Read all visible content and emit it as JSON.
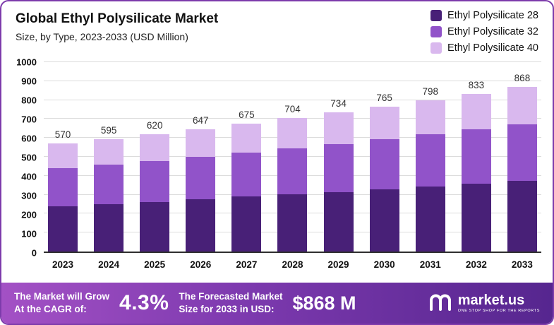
{
  "header": {
    "title": "Global Ethyl Polysilicate Market",
    "subtitle": "Size, by Type, 2023-2033 (USD Million)"
  },
  "chart_data": {
    "type": "bar",
    "stacked": true,
    "title": "Global Ethyl Polysilicate Market",
    "subtitle": "Size, by Type, 2023-2033 (USD Million)",
    "categories": [
      "2023",
      "2024",
      "2025",
      "2026",
      "2027",
      "2028",
      "2029",
      "2030",
      "2031",
      "2032",
      "2033"
    ],
    "series": [
      {
        "name": "Ethyl Polysilicate 28",
        "color": "#482077",
        "values": [
          240,
          250,
          262,
          276,
          290,
          302,
          314,
          328,
          342,
          357,
          372
        ]
      },
      {
        "name": "Ethyl Polysilicate 32",
        "color": "#9153c9",
        "values": [
          200,
          208,
          216,
          224,
          232,
          242,
          253,
          264,
          276,
          288,
          301
        ]
      },
      {
        "name": "Ethyl Polysilicate 40",
        "color": "#d9b8ee",
        "values": [
          130,
          137,
          142,
          147,
          153,
          160,
          167,
          173,
          180,
          188,
          195
        ]
      }
    ],
    "totals": [
      570,
      595,
      620,
      647,
      675,
      704,
      734,
      765,
      798,
      833,
      868
    ],
    "ylim": [
      0,
      1000
    ],
    "ytick_interval": 100,
    "grid": true,
    "legend_position": "top-right",
    "xlabel": "",
    "ylabel": ""
  },
  "banner": {
    "cagr_label_line1": "The Market will Grow",
    "cagr_label_line2": "At the CAGR of:",
    "cagr_value": "4.3%",
    "forecast_label_line1": "The Forecasted Market",
    "forecast_label_line2": "Size for 2033 in USD:",
    "forecast_value": "$868 M",
    "brand_name": "market.us",
    "brand_tagline": "ONE STOP SHOP FOR THE REPORTS"
  },
  "colors": {
    "frame_border": "#7d3bab",
    "banner_gradient_start": "#a351c5",
    "banner_gradient_mid": "#7c39ae",
    "banner_gradient_end": "#56268f",
    "gridline": "#dcdcdc",
    "axis_baseline": "#2f2f2f"
  }
}
